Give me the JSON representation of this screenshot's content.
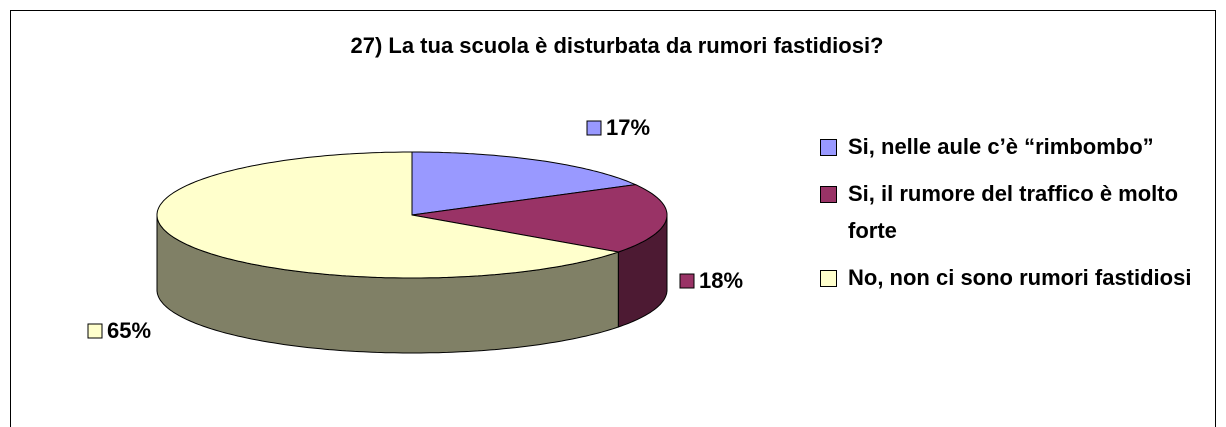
{
  "chart_data": {
    "type": "pie",
    "title": "27) La tua scuola è disturbata da rumori fastidiosi?",
    "categories": [
      "Si, nelle aule c’è “rimbombo”",
      "Si, il rumore del traffico è molto forte",
      "No, non ci sono rumori fastidiosi"
    ],
    "values": [
      17,
      18,
      65
    ],
    "value_labels": [
      "17%",
      "18%",
      "65%"
    ],
    "colors": [
      "#9999ff",
      "#993366",
      "#ffffcc"
    ],
    "legend": "right"
  }
}
